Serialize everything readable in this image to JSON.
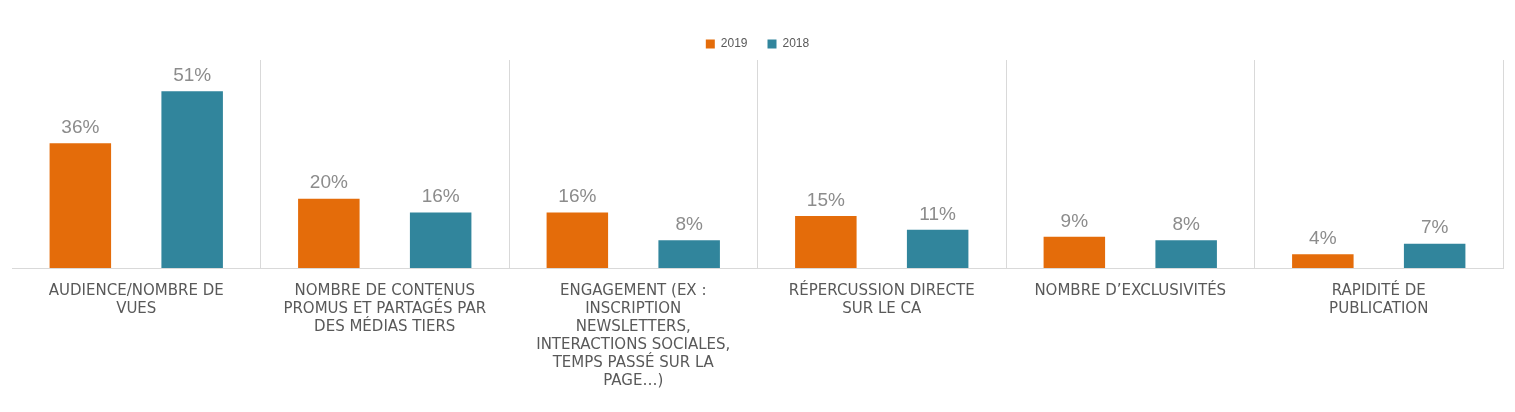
{
  "chart_data": {
    "type": "bar",
    "categories": [
      "AUDIENCE/NOMBRE DE VUES",
      "NOMBRE DE CONTENUS PROMUS ET PARTAGÉS PAR DES MÉDIAS TIERS",
      "ENGAGEMENT (EX : INSCRIPTION NEWSLETTERS, INTERACTIONS SOCIALES, TEMPS PASSÉ SUR LA PAGE…)",
      "RÉPERCUSSION DIRECTE SUR LE CA",
      "NOMBRE D’EXCLUSIVITÉS",
      "RAPIDITÉ DE PUBLICATION"
    ],
    "series": [
      {
        "name": "2019",
        "color": "#e46c0a",
        "values": [
          36,
          20,
          16,
          15,
          9,
          4
        ],
        "value_labels": [
          "36%",
          "20%",
          "16%",
          "15%",
          "9%",
          "4%"
        ]
      },
      {
        "name": "2018",
        "color": "#31859c",
        "values": [
          51,
          16,
          8,
          11,
          8,
          7
        ],
        "value_labels": [
          "51%",
          "16%",
          "8%",
          "11%",
          "8%",
          "7%"
        ]
      }
    ],
    "grid": "x",
    "legend": "top"
  }
}
